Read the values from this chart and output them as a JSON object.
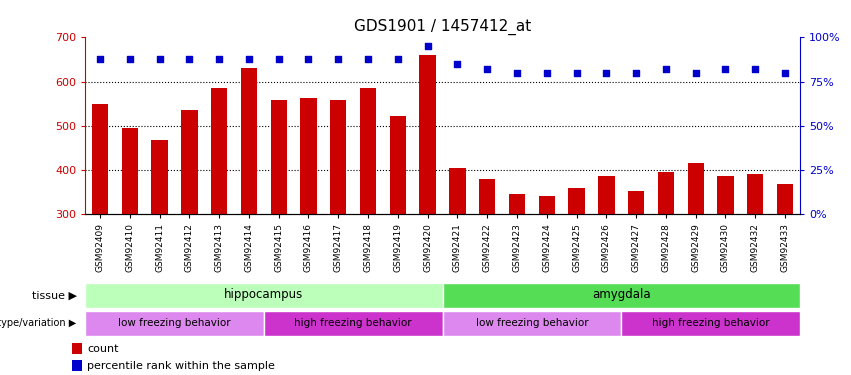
{
  "title": "GDS1901 / 1457412_at",
  "samples": [
    "GSM92409",
    "GSM92410",
    "GSM92411",
    "GSM92412",
    "GSM92413",
    "GSM92414",
    "GSM92415",
    "GSM92416",
    "GSM92417",
    "GSM92418",
    "GSM92419",
    "GSM92420",
    "GSM92421",
    "GSM92422",
    "GSM92423",
    "GSM92424",
    "GSM92425",
    "GSM92426",
    "GSM92427",
    "GSM92428",
    "GSM92429",
    "GSM92430",
    "GSM92432",
    "GSM92433"
  ],
  "counts": [
    548,
    495,
    468,
    535,
    585,
    630,
    558,
    562,
    558,
    585,
    522,
    660,
    403,
    380,
    345,
    340,
    358,
    385,
    352,
    395,
    415,
    385,
    390,
    367
  ],
  "percentiles": [
    88,
    88,
    88,
    88,
    88,
    88,
    88,
    88,
    88,
    88,
    88,
    95,
    85,
    82,
    80,
    80,
    80,
    80,
    80,
    82,
    80,
    82,
    82,
    80
  ],
  "ylim_left": [
    300,
    700
  ],
  "ylim_right": [
    0,
    100
  ],
  "yticks_left": [
    300,
    400,
    500,
    600,
    700
  ],
  "yticks_right": [
    0,
    25,
    50,
    75,
    100
  ],
  "bar_color": "#cc0000",
  "dot_color": "#0000cc",
  "tissue_row": [
    {
      "label": "hippocampus",
      "start": 0,
      "end": 12,
      "color": "#bbffbb"
    },
    {
      "label": "amygdala",
      "start": 12,
      "end": 24,
      "color": "#55dd55"
    }
  ],
  "genotype_row": [
    {
      "label": "low freezing behavior",
      "start": 0,
      "end": 6,
      "color": "#dd88ee"
    },
    {
      "label": "high freezing behavior",
      "start": 6,
      "end": 12,
      "color": "#cc33cc"
    },
    {
      "label": "low freezing behavior",
      "start": 12,
      "end": 18,
      "color": "#dd88ee"
    },
    {
      "label": "high freezing behavior",
      "start": 18,
      "end": 24,
      "color": "#cc33cc"
    }
  ],
  "tissue_label": "tissue",
  "genotype_label": "genotype/variation",
  "legend_count_label": "count",
  "legend_pct_label": "percentile rank within the sample",
  "background_color": "#ffffff"
}
